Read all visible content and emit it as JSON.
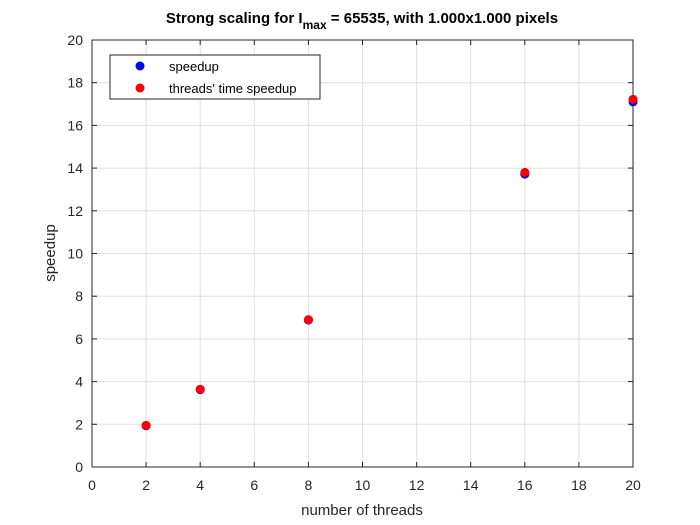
{
  "chart_data": {
    "type": "scatter",
    "title": {
      "prefix": "Strong scaling for I",
      "subscript": "max",
      "suffix": " = 65535, with 1.000x1.000 pixels"
    },
    "xlabel": "number of threads",
    "ylabel": "speedup",
    "xlim": [
      0,
      20
    ],
    "ylim": [
      0,
      20
    ],
    "xticks": [
      0,
      2,
      4,
      6,
      8,
      10,
      12,
      14,
      16,
      18,
      20
    ],
    "yticks": [
      0,
      2,
      4,
      6,
      8,
      10,
      12,
      14,
      16,
      18,
      20
    ],
    "grid": true,
    "legend_position": "top-left",
    "series": [
      {
        "name": "speedup",
        "color": "#0000ff",
        "x": [
          2,
          4,
          8,
          16,
          20
        ],
        "y": [
          1.93,
          3.62,
          6.88,
          13.72,
          17.1
        ]
      },
      {
        "name": "threads' time speedup",
        "color": "#ff0000",
        "x": [
          2,
          4,
          8,
          16,
          20
        ],
        "y": [
          1.95,
          3.64,
          6.9,
          13.8,
          17.22
        ]
      }
    ]
  }
}
